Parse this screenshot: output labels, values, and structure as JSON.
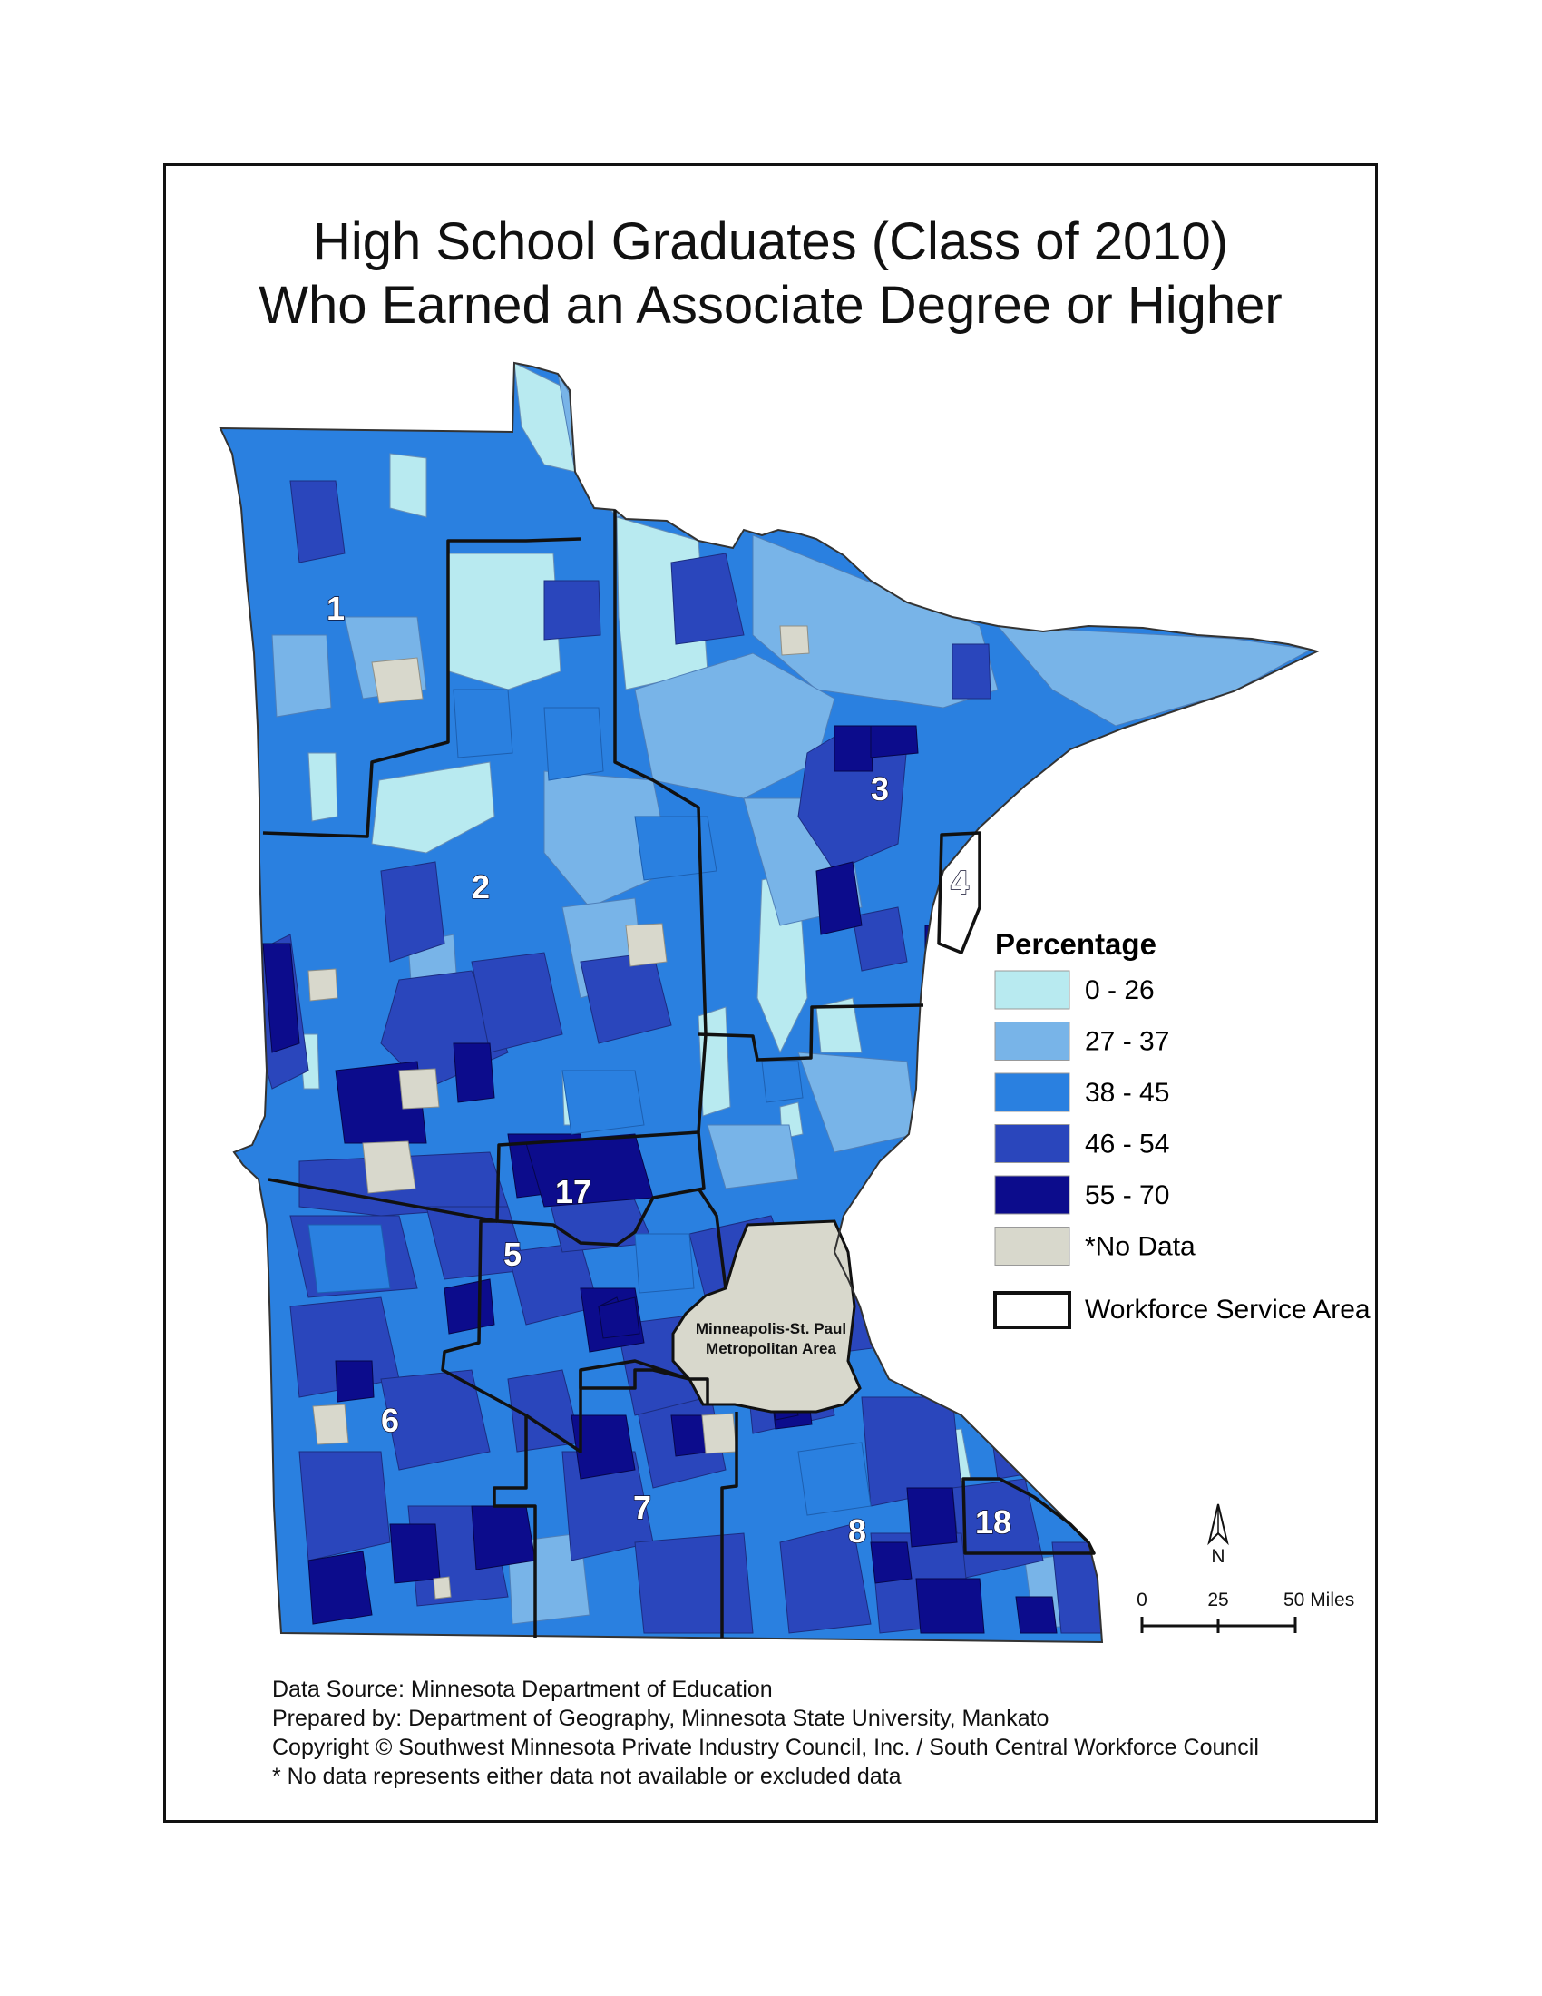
{
  "title": {
    "line1": "High School Graduates (Class of 2010)",
    "line2": "Who Earned an Associate Degree or Higher"
  },
  "legend": {
    "title": "Percentage",
    "classes": [
      {
        "label": "0 - 26",
        "color": "#b8eaf0"
      },
      {
        "label": "27 - 37",
        "color": "#78b4e8"
      },
      {
        "label": "38 - 45",
        "color": "#2a80e0"
      },
      {
        "label": "46 - 54",
        "color": "#2a46bc"
      },
      {
        "label": "55 - 70",
        "color": "#0c0c8c"
      },
      {
        "label": "*No Data",
        "color": "#d8d8cc"
      }
    ],
    "boundary_label": "Workforce Service Area"
  },
  "areas": [
    "1",
    "2",
    "3",
    "4",
    "5",
    "6",
    "7",
    "8",
    "17",
    "18"
  ],
  "metro": {
    "line1": "Minneapolis-St. Paul",
    "line2": "Metropolitan Area"
  },
  "north_arrow": "N",
  "scale_bar": {
    "labels": [
      "0",
      "25",
      "50 Miles"
    ]
  },
  "credits": {
    "source": "Data Source: Minnesota Department of Education",
    "prepared": "Prepared by: Department of Geography, Minnesota State University, Mankato",
    "copyright": "Copyright © Southwest Minnesota Private Industry Council, Inc.  / South Central Workforce Council",
    "note": "* No data represents either data not available or excluded data"
  }
}
